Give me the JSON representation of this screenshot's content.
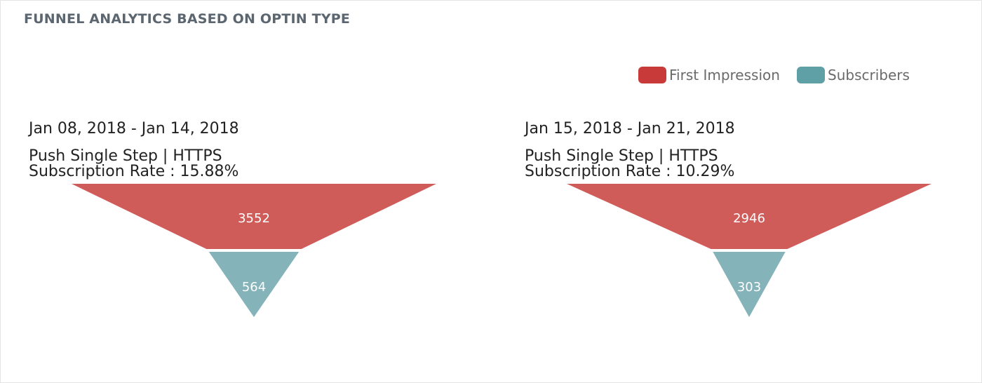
{
  "title": "FUNNEL ANALYTICS BASED ON OPTIN TYPE",
  "legend": [
    {
      "name": "First Impression",
      "color": "#c83a3a"
    },
    {
      "name": "Subscribers",
      "color": "#5f9fa6"
    }
  ],
  "colors": {
    "first_impression_fill": "#d05c5a",
    "subscribers_fill": "#84b3b9"
  },
  "chart_data": [
    {
      "type": "funnel",
      "date_range": "Jan 08, 2018 - Jan 14, 2018",
      "optin": "Push Single Step | HTTPS",
      "rate_text": "Subscription Rate : 15.88%",
      "stages": [
        {
          "name": "First Impression",
          "value": 3552
        },
        {
          "name": "Subscribers",
          "value": 564
        }
      ]
    },
    {
      "type": "funnel",
      "date_range": "Jan 15, 2018 - Jan 21, 2018",
      "optin": "Push Single Step | HTTPS",
      "rate_text": "Subscription Rate : 10.29%",
      "stages": [
        {
          "name": "First Impression",
          "value": 2946
        },
        {
          "name": "Subscribers",
          "value": 303
        }
      ]
    }
  ]
}
